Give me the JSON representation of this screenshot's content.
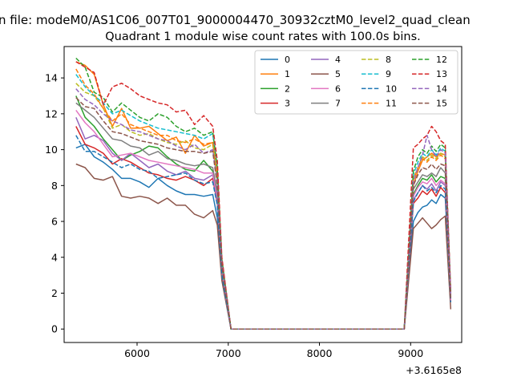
{
  "chart_data": {
    "type": "line",
    "suptitle": "n file: modeM0/AS1C06_007T01_9000004470_30932cztM0_level2_quad_clean",
    "title": "Quadrant 1 module wise count rates with 100.0s bins.",
    "xlabel": "",
    "ylabel": "",
    "x_offset_label": "+3.6165e8",
    "x_offset": 361650000,
    "xlim": [
      5200,
      9560
    ],
    "ylim": [
      -0.75,
      15.75
    ],
    "xticks": [
      6000,
      7000,
      8000,
      9000
    ],
    "xtick_labels": [
      "6000",
      "7000",
      "8000",
      "9000"
    ],
    "yticks": [
      0,
      2,
      4,
      6,
      8,
      10,
      12,
      14
    ],
    "ytick_labels": [
      "0",
      "2",
      "4",
      "6",
      "8",
      "10",
      "12",
      "14"
    ],
    "grid": false,
    "legend_position": "top-right",
    "legend_columns": 4,
    "x": [
      5330,
      5430,
      5530,
      5630,
      5730,
      5830,
      5930,
      6030,
      6130,
      6230,
      6330,
      6430,
      6530,
      6630,
      6730,
      6830,
      6880,
      6930,
      7030,
      7130,
      7230,
      7330,
      7430,
      7530,
      7630,
      7730,
      7830,
      7930,
      8030,
      8130,
      8230,
      8330,
      8430,
      8530,
      8630,
      8730,
      8830,
      8930,
      9030,
      9080,
      9130,
      9180,
      9230,
      9280,
      9330,
      9380,
      9440
    ],
    "series": [
      {
        "name": "0",
        "color": "#1f77b4",
        "dash": "solid",
        "values": [
          10.1,
          10.3,
          9.6,
          9.3,
          8.9,
          8.4,
          8.4,
          8.2,
          7.9,
          8.4,
          8.0,
          7.7,
          7.5,
          7.5,
          7.4,
          7.5,
          6.2,
          3.0,
          0,
          0,
          0,
          0,
          0,
          0,
          0,
          0,
          0,
          0,
          0,
          0,
          0,
          0,
          0,
          0,
          0,
          0,
          0,
          0,
          6.0,
          6.5,
          6.8,
          6.9,
          7.2,
          7.0,
          7.5,
          7.3,
          1.5
        ]
      },
      {
        "name": "1",
        "color": "#ff7f0e",
        "dash": "solid",
        "values": [
          14.9,
          14.7,
          14.2,
          12.5,
          11.3,
          12.3,
          11.2,
          11.2,
          11.3,
          10.9,
          10.5,
          10.7,
          9.8,
          10.8,
          10.2,
          10.4,
          8.3,
          3.5,
          0,
          0,
          0,
          0,
          0,
          0,
          0,
          0,
          0,
          0,
          0,
          0,
          0,
          0,
          0,
          0,
          0,
          0,
          0,
          0,
          8.0,
          8.8,
          9.4,
          9.6,
          9.8,
          9.6,
          9.8,
          9.7,
          1.8
        ]
      },
      {
        "name": "2",
        "color": "#2ca02c",
        "dash": "solid",
        "values": [
          13.0,
          11.8,
          11.3,
          10.6,
          10.0,
          9.4,
          9.7,
          9.9,
          10.2,
          10.1,
          9.6,
          9.2,
          8.9,
          8.8,
          9.4,
          8.8,
          7.2,
          3.3,
          0,
          0,
          0,
          0,
          0,
          0,
          0,
          0,
          0,
          0,
          0,
          0,
          0,
          0,
          0,
          0,
          0,
          0,
          0,
          0,
          7.5,
          8.0,
          8.4,
          8.3,
          8.6,
          8.2,
          8.5,
          8.4,
          1.7
        ]
      },
      {
        "name": "3",
        "color": "#d62728",
        "dash": "solid",
        "values": [
          11.3,
          10.3,
          10.1,
          9.8,
          9.2,
          9.5,
          9.3,
          9.0,
          8.7,
          8.6,
          8.4,
          8.3,
          8.5,
          8.3,
          8.0,
          8.4,
          7.0,
          3.1,
          0,
          0,
          0,
          0,
          0,
          0,
          0,
          0,
          0,
          0,
          0,
          0,
          0,
          0,
          0,
          0,
          0,
          0,
          0,
          0,
          7.0,
          7.3,
          7.7,
          7.5,
          7.8,
          7.4,
          7.9,
          7.6,
          1.6
        ]
      },
      {
        "name": "4",
        "color": "#9467bd",
        "dash": "solid",
        "values": [
          11.8,
          10.6,
          10.8,
          10.5,
          9.8,
          9.4,
          9.8,
          9.4,
          9.0,
          9.2,
          8.8,
          8.6,
          8.8,
          8.4,
          8.3,
          8.6,
          7.1,
          3.2,
          0,
          0,
          0,
          0,
          0,
          0,
          0,
          0,
          0,
          0,
          0,
          0,
          0,
          0,
          0,
          0,
          0,
          0,
          0,
          0,
          7.2,
          7.6,
          8.0,
          7.8,
          8.1,
          7.7,
          8.2,
          8.0,
          1.6
        ]
      },
      {
        "name": "5",
        "color": "#8c564b",
        "dash": "solid",
        "values": [
          9.2,
          9.0,
          8.4,
          8.3,
          8.5,
          7.4,
          7.3,
          7.4,
          7.3,
          7.0,
          7.3,
          6.9,
          6.9,
          6.4,
          6.2,
          6.6,
          5.8,
          2.7,
          0,
          0,
          0,
          0,
          0,
          0,
          0,
          0,
          0,
          0,
          0,
          0,
          0,
          0,
          0,
          0,
          0,
          0,
          0,
          0,
          5.6,
          5.9,
          6.2,
          5.9,
          5.6,
          5.8,
          6.1,
          6.3,
          1.1
        ]
      },
      {
        "name": "6",
        "color": "#e377c2",
        "dash": "solid",
        "values": [
          12.2,
          11.5,
          11.0,
          10.3,
          9.6,
          9.7,
          9.8,
          9.6,
          9.4,
          9.3,
          9.2,
          9.1,
          9.0,
          8.9,
          8.7,
          8.7,
          7.3,
          3.2,
          0,
          0,
          0,
          0,
          0,
          0,
          0,
          0,
          0,
          0,
          0,
          0,
          0,
          0,
          0,
          0,
          0,
          0,
          0,
          0,
          7.4,
          7.9,
          8.2,
          8.1,
          8.4,
          8.0,
          8.3,
          8.1,
          1.6
        ]
      },
      {
        "name": "7",
        "color": "#7f7f7f",
        "dash": "solid",
        "values": [
          12.6,
          12.2,
          11.8,
          11.2,
          10.6,
          10.5,
          10.2,
          10.1,
          9.7,
          9.9,
          9.5,
          9.4,
          9.2,
          9.1,
          9.2,
          9.0,
          7.6,
          3.4,
          0,
          0,
          0,
          0,
          0,
          0,
          0,
          0,
          0,
          0,
          0,
          0,
          0,
          0,
          0,
          0,
          0,
          0,
          0,
          0,
          7.8,
          8.2,
          8.6,
          8.5,
          8.7,
          8.5,
          9.0,
          8.7,
          1.7
        ]
      },
      {
        "name": "8",
        "color": "#bcbd22",
        "dash": "dashed",
        "values": [
          13.7,
          13.2,
          13.0,
          12.3,
          11.2,
          11.4,
          11.0,
          10.8,
          10.9,
          10.6,
          10.4,
          10.3,
          10.5,
          10.1,
          10.0,
          10.3,
          8.4,
          3.6,
          0,
          0,
          0,
          0,
          0,
          0,
          0,
          0,
          0,
          0,
          0,
          0,
          0,
          0,
          0,
          0,
          0,
          0,
          0,
          0,
          8.4,
          9.0,
          9.6,
          9.4,
          9.7,
          9.5,
          9.8,
          9.6,
          1.8
        ]
      },
      {
        "name": "9",
        "color": "#17becf",
        "dash": "dashed",
        "values": [
          14.2,
          13.5,
          13.0,
          12.6,
          12.0,
          12.2,
          11.9,
          11.6,
          11.4,
          11.2,
          11.1,
          11.0,
          10.9,
          10.8,
          10.6,
          10.9,
          8.8,
          3.8,
          0,
          0,
          0,
          0,
          0,
          0,
          0,
          0,
          0,
          0,
          0,
          0,
          0,
          0,
          0,
          0,
          0,
          0,
          0,
          0,
          8.6,
          9.3,
          9.8,
          9.6,
          10.0,
          9.7,
          10.1,
          9.9,
          1.9
        ]
      },
      {
        "name": "10",
        "color": "#1f77b4",
        "dash": "dashed",
        "values": [
          10.8,
          9.9,
          9.9,
          9.6,
          9.3,
          9.0,
          9.2,
          8.9,
          8.8,
          8.4,
          8.5,
          8.6,
          8.7,
          8.3,
          8.1,
          8.2,
          6.9,
          3.0,
          0,
          0,
          0,
          0,
          0,
          0,
          0,
          0,
          0,
          0,
          0,
          0,
          0,
          0,
          0,
          0,
          0,
          0,
          0,
          0,
          7.1,
          7.6,
          8.0,
          7.7,
          7.9,
          7.6,
          8.0,
          7.8,
          1.5
        ]
      },
      {
        "name": "11",
        "color": "#ff7f0e",
        "dash": "dashed",
        "values": [
          14.5,
          13.6,
          13.1,
          12.3,
          11.6,
          12.0,
          11.4,
          11.2,
          11.0,
          10.8,
          10.8,
          10.5,
          10.4,
          10.6,
          10.3,
          10.4,
          8.6,
          3.7,
          0,
          0,
          0,
          0,
          0,
          0,
          0,
          0,
          0,
          0,
          0,
          0,
          0,
          0,
          0,
          0,
          0,
          0,
          0,
          0,
          8.3,
          9.0,
          9.5,
          9.3,
          9.6,
          9.4,
          9.7,
          9.5,
          1.8
        ]
      },
      {
        "name": "12",
        "color": "#2ca02c",
        "dash": "dashed",
        "values": [
          15.1,
          14.6,
          13.2,
          12.9,
          12.1,
          12.6,
          12.2,
          11.8,
          11.6,
          12.0,
          11.8,
          11.3,
          11.0,
          11.2,
          10.8,
          11.0,
          9.0,
          3.9,
          0,
          0,
          0,
          0,
          0,
          0,
          0,
          0,
          0,
          0,
          0,
          0,
          0,
          0,
          0,
          0,
          0,
          0,
          0,
          0,
          8.8,
          9.6,
          10.0,
          9.8,
          10.2,
          9.9,
          10.3,
          10.1,
          2.0
        ]
      },
      {
        "name": "13",
        "color": "#d62728",
        "dash": "dashed",
        "values": [
          14.9,
          14.6,
          14.3,
          12.5,
          13.5,
          13.7,
          13.4,
          13.0,
          12.8,
          12.6,
          12.5,
          12.1,
          12.2,
          11.4,
          11.9,
          11.3,
          9.4,
          4.0,
          0,
          0,
          0,
          0,
          0,
          0,
          0,
          0,
          0,
          0,
          0,
          0,
          0,
          0,
          0,
          0,
          0,
          0,
          0,
          0,
          10.1,
          10.3,
          10.6,
          10.8,
          11.3,
          11.0,
          10.5,
          10.3,
          2.1
        ]
      },
      {
        "name": "14",
        "color": "#9467bd",
        "dash": "dashed",
        "values": [
          13.4,
          12.8,
          12.5,
          12.0,
          11.6,
          11.4,
          11.1,
          11.0,
          10.8,
          10.6,
          10.5,
          10.2,
          10.0,
          10.3,
          9.8,
          10.0,
          8.2,
          3.6,
          0,
          0,
          0,
          0,
          0,
          0,
          0,
          0,
          0,
          0,
          0,
          0,
          0,
          0,
          0,
          0,
          0,
          0,
          0,
          0,
          8.2,
          9.0,
          9.7,
          10.8,
          10.0,
          9.6,
          10.0,
          9.8,
          1.9
        ]
      },
      {
        "name": "15",
        "color": "#8c564b",
        "dash": "dashed",
        "values": [
          12.9,
          12.4,
          12.3,
          11.6,
          11.0,
          10.9,
          10.7,
          10.5,
          10.4,
          10.3,
          10.1,
          10.0,
          9.9,
          9.9,
          9.8,
          9.9,
          8.0,
          3.5,
          0,
          0,
          0,
          0,
          0,
          0,
          0,
          0,
          0,
          0,
          0,
          0,
          0,
          0,
          0,
          0,
          0,
          0,
          0,
          0,
          8.0,
          8.6,
          9.0,
          8.9,
          9.2,
          8.9,
          9.2,
          9.1,
          1.7
        ]
      }
    ]
  }
}
